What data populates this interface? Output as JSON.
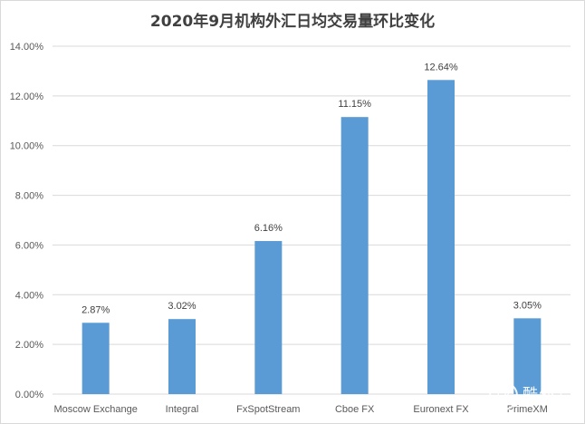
{
  "chart_data": {
    "type": "bar",
    "title": "2020年9月机构外汇日均交易量环比变化",
    "categories": [
      "Moscow Exchange",
      "Integral",
      "FxSpotStream",
      "Cboe FX",
      "Euronext FX",
      "PrimeXM"
    ],
    "values": [
      2.87,
      3.02,
      6.16,
      11.15,
      12.64,
      3.05
    ],
    "data_labels": [
      "2.87%",
      "3.02%",
      "6.16%",
      "11.15%",
      "12.64%",
      "3.05%"
    ],
    "y_ticks": [
      "0.00%",
      "2.00%",
      "4.00%",
      "6.00%",
      "8.00%",
      "10.00%",
      "12.00%",
      "14.00%"
    ],
    "ylim": [
      0,
      14
    ],
    "ytick_step": 2,
    "grid": true,
    "legend": "none",
    "bar_color": "#5b9bd5",
    "grid_color": "#d9d9d9"
  },
  "watermark": {
    "logo_text": "FX",
    "name": "酷外汇",
    "sub": "FX COOL"
  }
}
